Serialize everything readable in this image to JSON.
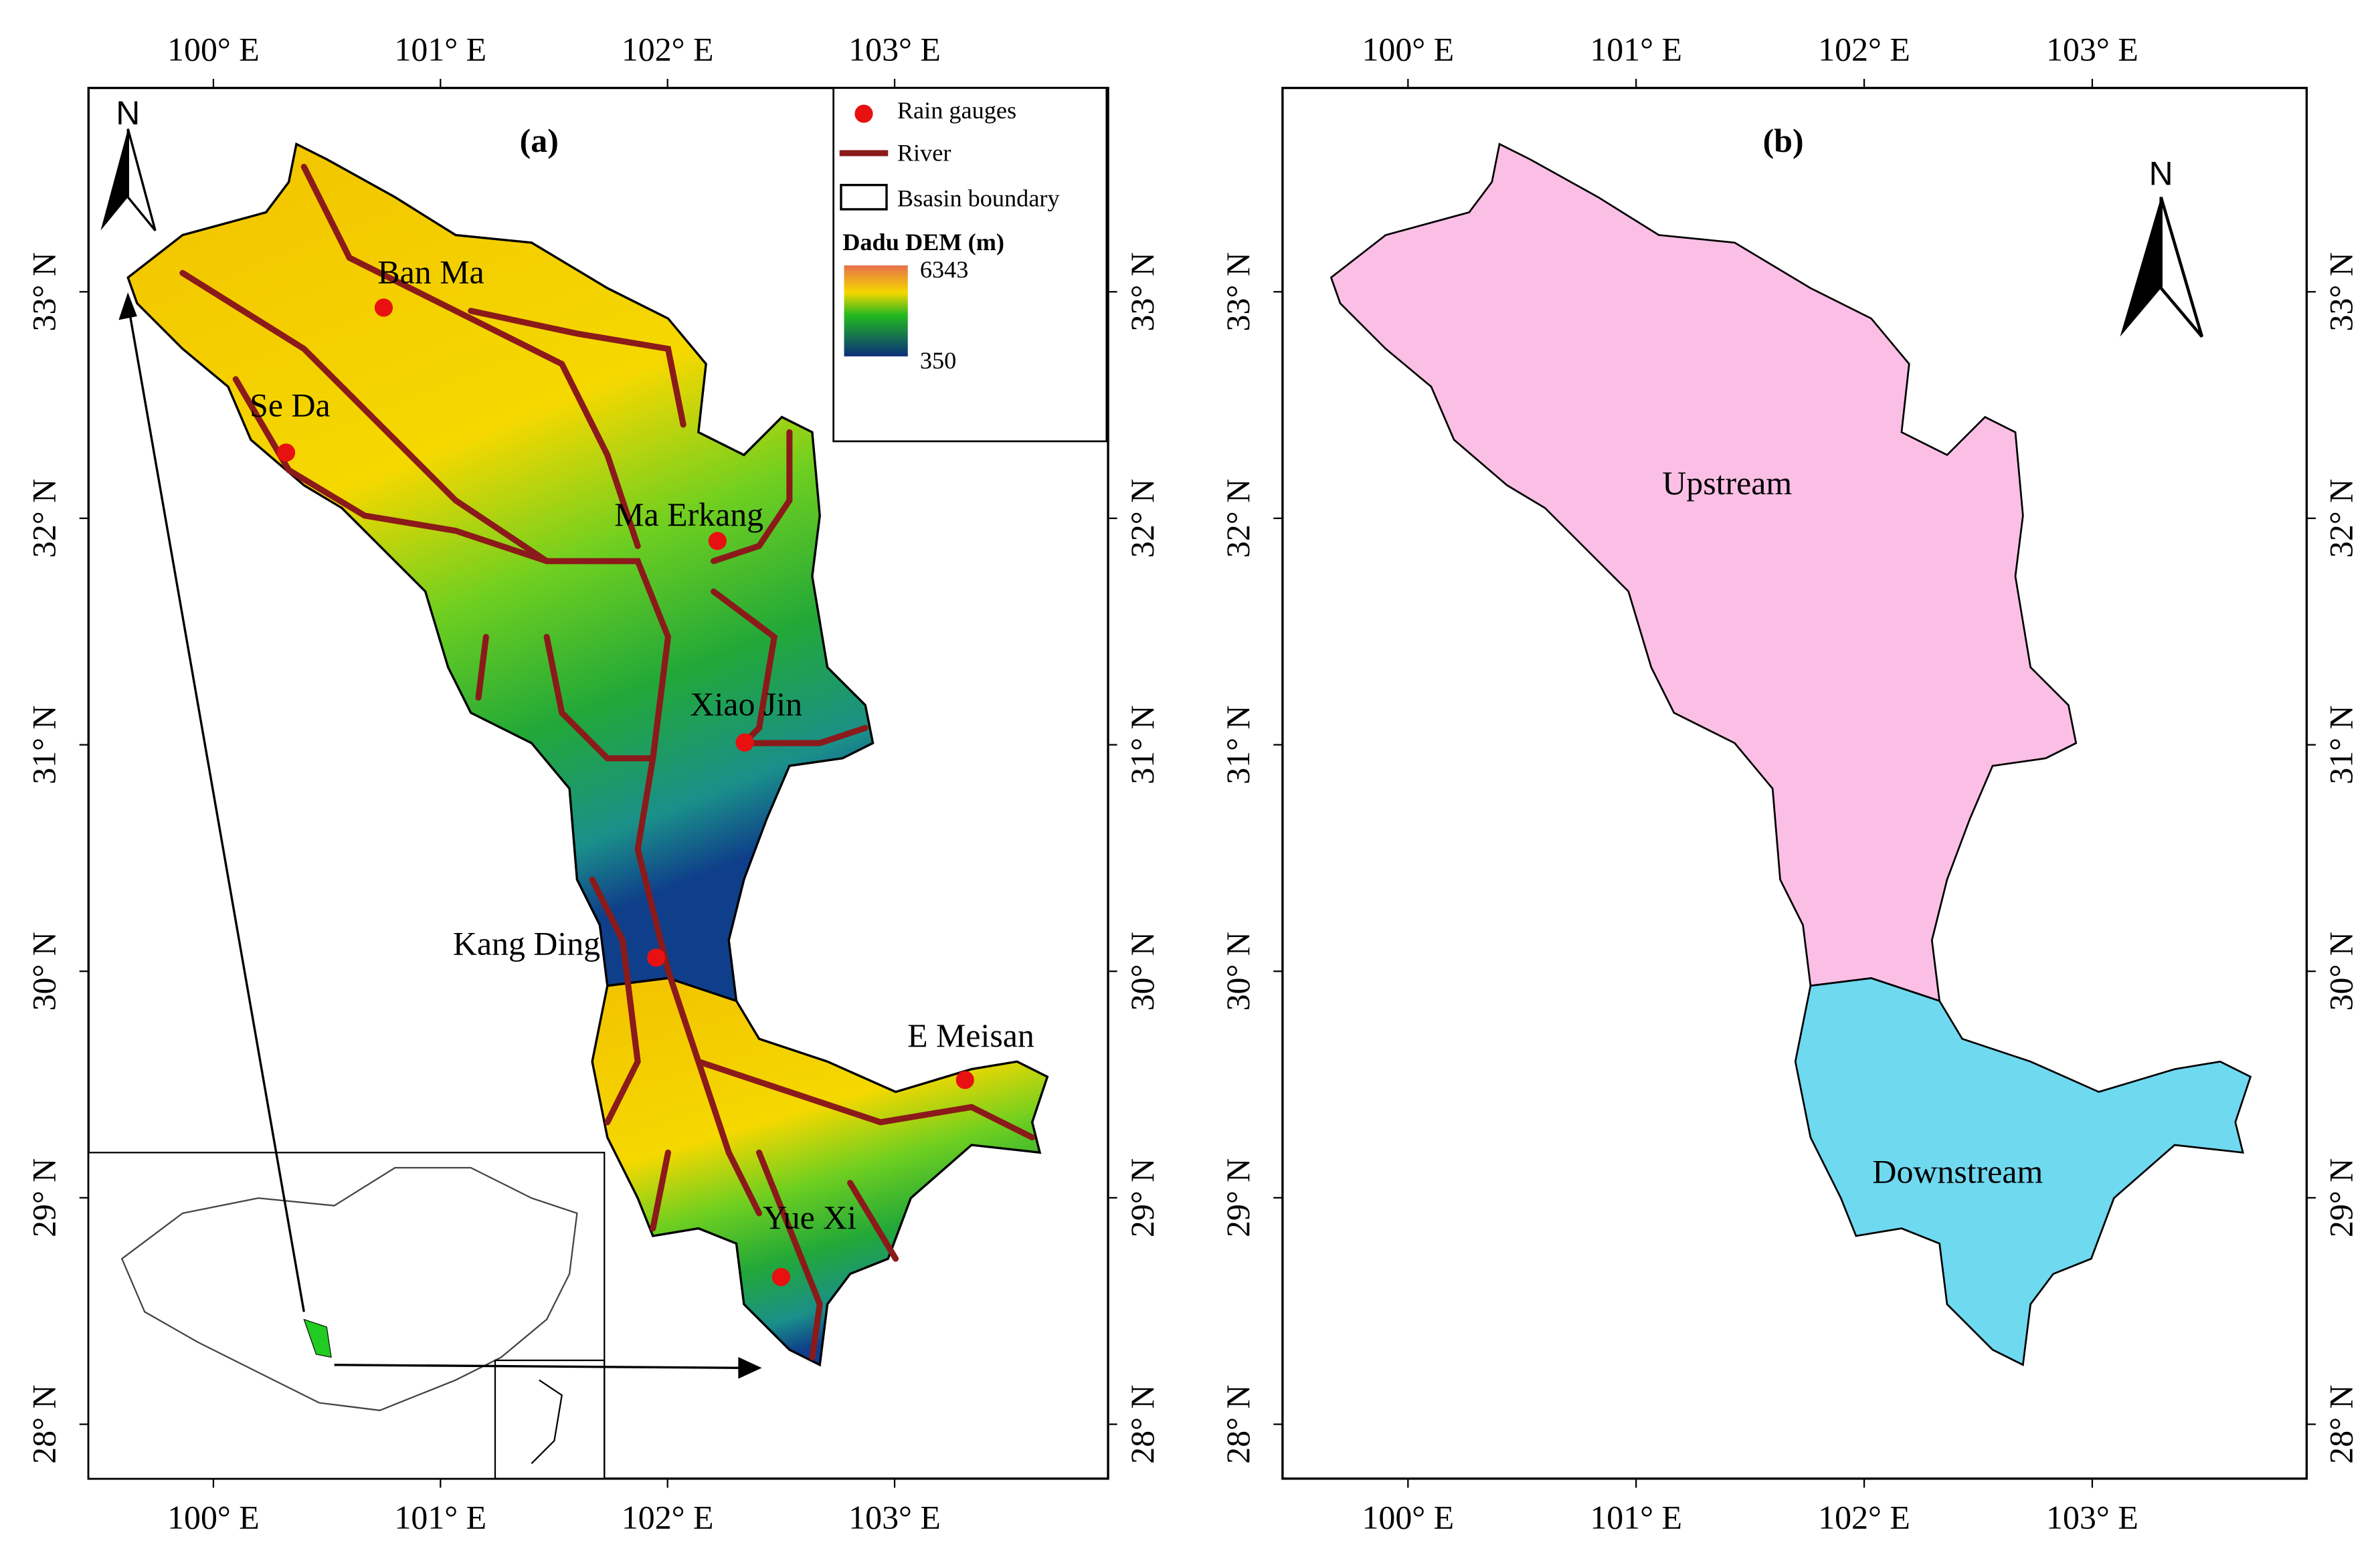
{
  "map": {
    "lon_ticks": [
      {
        "value": 100,
        "label": "100° E"
      },
      {
        "value": 101,
        "label": "101° E"
      },
      {
        "value": 102,
        "label": "102° E"
      },
      {
        "value": 103,
        "label": "103° E"
      }
    ],
    "lat_ticks": [
      {
        "value": 33,
        "label": "33° N"
      },
      {
        "value": 32,
        "label": "32° N"
      },
      {
        "value": 31,
        "label": "31° N"
      },
      {
        "value": 30,
        "label": "30° N"
      },
      {
        "value": 29,
        "label": "29° N"
      },
      {
        "value": 28,
        "label": "28° N"
      }
    ],
    "lon_range": [
      99.45,
      103.94
    ],
    "lat_range": [
      27.76,
      33.9
    ],
    "panels": [
      {
        "label": "(a)",
        "north": "N",
        "legend": {
          "gauges": "Rain gauges",
          "river": "River",
          "boundary": "Bsasin boundary",
          "dem_title": "Dadu DEM (m)",
          "dem_max": 6343,
          "dem_min": 350
        },
        "gauges": [
          {
            "name": "Ban Ma",
            "lon": 100.75,
            "lat": 32.93
          },
          {
            "name": "Se Da",
            "lon": 100.32,
            "lat": 32.29
          },
          {
            "name": "Ma Erkang",
            "lon": 102.22,
            "lat": 31.9
          },
          {
            "name": "Xiao Jin",
            "lon": 102.34,
            "lat": 31.01
          },
          {
            "name": "Kang Ding",
            "lon": 101.95,
            "lat": 30.06
          },
          {
            "name": "E Meisan",
            "lon": 103.31,
            "lat": 29.52
          },
          {
            "name": "Yue Xi",
            "lon": 102.5,
            "lat": 28.65
          }
        ]
      },
      {
        "label": "(b)",
        "north": "N",
        "regions": [
          "Upstream",
          "Downstream"
        ]
      }
    ]
  }
}
